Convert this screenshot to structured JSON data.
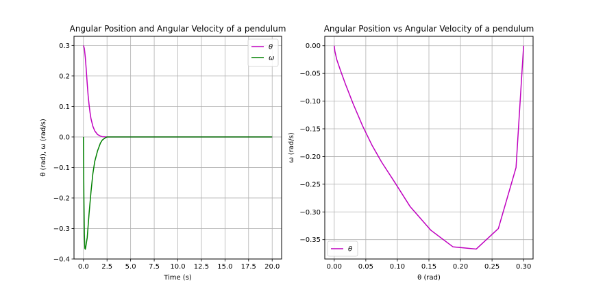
{
  "chart_data": [
    {
      "type": "line",
      "title": "Angular Position and Angular Velocity of a pendulum",
      "xlabel": "Time (s)",
      "ylabel": "θ (rad), ω (rad/s)",
      "xlim": [
        -1.0,
        21.0
      ],
      "ylim": [
        -0.4,
        0.33
      ],
      "xticks": [
        0.0,
        2.5,
        5.0,
        7.5,
        10.0,
        12.5,
        15.0,
        17.5,
        20.0
      ],
      "xtick_labels": [
        "0.0",
        "2.5",
        "5.0",
        "7.5",
        "10.0",
        "12.5",
        "15.0",
        "17.5",
        "20.0"
      ],
      "yticks": [
        -0.4,
        -0.3,
        -0.2,
        -0.1,
        0.0,
        0.1,
        0.2,
        0.3
      ],
      "ytick_labels": [
        "−0.4",
        "−0.3",
        "−0.2",
        "−0.1",
        "0.0",
        "0.1",
        "0.2",
        "0.3"
      ],
      "grid": true,
      "legend": "top-right",
      "series": [
        {
          "name": "θ",
          "color": "#bf00bf",
          "x": [
            0.0,
            0.1,
            0.2,
            0.3,
            0.4,
            0.5,
            0.6,
            0.7,
            0.8,
            1.0,
            1.2,
            1.5,
            1.8,
            2.0,
            2.5,
            3.0,
            5.0,
            10.0,
            20.0
          ],
          "y": [
            0.3,
            0.29,
            0.26,
            0.22,
            0.175,
            0.135,
            0.105,
            0.08,
            0.06,
            0.035,
            0.02,
            0.008,
            0.003,
            0.001,
            0.0,
            0.0,
            0.0,
            0.0,
            0.0
          ]
        },
        {
          "name": "ω",
          "color": "#008000",
          "x": [
            0.0,
            0.05,
            0.1,
            0.15,
            0.2,
            0.25,
            0.3,
            0.4,
            0.5,
            0.6,
            0.8,
            1.0,
            1.2,
            1.5,
            1.8,
            2.0,
            2.3,
            2.5,
            3.0,
            5.0,
            10.0,
            20.0
          ],
          "y": [
            0.0,
            -0.2,
            -0.32,
            -0.365,
            -0.368,
            -0.36,
            -0.35,
            -0.33,
            -0.29,
            -0.25,
            -0.18,
            -0.12,
            -0.08,
            -0.045,
            -0.02,
            -0.01,
            -0.003,
            0.0,
            0.0,
            0.0,
            0.0,
            0.0
          ]
        }
      ]
    },
    {
      "type": "line",
      "title": "Angular Position vs Angular Velocity of a pendulum",
      "xlabel": "θ (rad)",
      "ylabel": "ω (rad/s)",
      "xlim": [
        -0.015,
        0.315
      ],
      "ylim": [
        -0.385,
        0.017
      ],
      "xticks": [
        0.0,
        0.05,
        0.1,
        0.15,
        0.2,
        0.25,
        0.3
      ],
      "xtick_labels": [
        "0.00",
        "0.05",
        "0.10",
        "0.15",
        "0.20",
        "0.25",
        "0.30"
      ],
      "yticks": [
        0.0,
        -0.05,
        -0.1,
        -0.15,
        -0.2,
        -0.25,
        -0.3,
        -0.35
      ],
      "ytick_labels": [
        "0.00",
        "−0.05",
        "−0.10",
        "−0.15",
        "−0.20",
        "−0.25",
        "−0.30",
        "−0.35"
      ],
      "grid": true,
      "legend": "bottom-left",
      "series": [
        {
          "name": "θ",
          "color": "#bf00bf",
          "x": [
            0.0,
            0.001,
            0.004,
            0.01,
            0.018,
            0.03,
            0.045,
            0.06,
            0.075,
            0.095,
            0.12,
            0.153,
            0.188,
            0.225,
            0.26,
            0.288,
            0.3
          ],
          "y": [
            0.0,
            -0.01,
            -0.025,
            -0.045,
            -0.07,
            -0.105,
            -0.145,
            -0.18,
            -0.21,
            -0.245,
            -0.29,
            -0.333,
            -0.363,
            -0.367,
            -0.33,
            -0.22,
            0.0
          ]
        }
      ]
    }
  ]
}
